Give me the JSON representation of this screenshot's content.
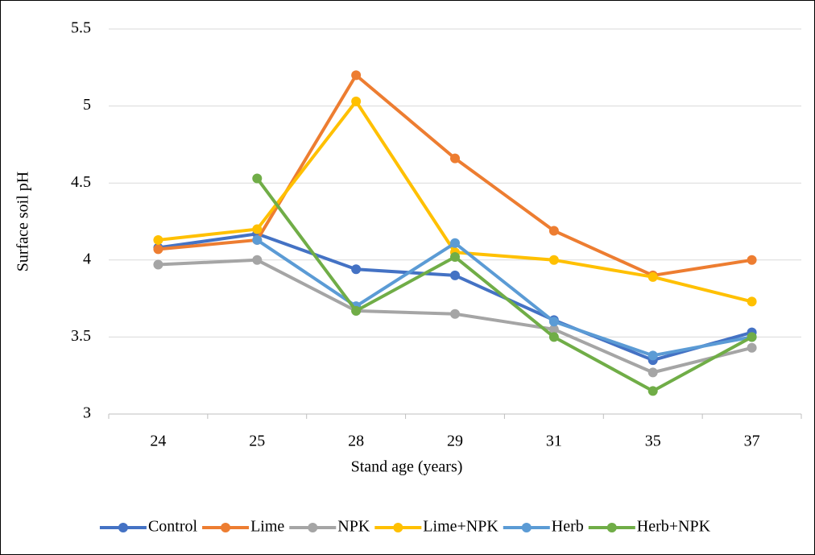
{
  "chart_data": {
    "type": "line",
    "x_label": "Stand age (years)",
    "y_label": "Surface soil pH",
    "categories": [
      "24",
      "25",
      "28",
      "29",
      "31",
      "35",
      "37"
    ],
    "series": [
      {
        "name": "Control",
        "color": "#4472c4",
        "values": [
          4.08,
          4.17,
          3.94,
          3.9,
          3.61,
          3.35,
          3.53
        ]
      },
      {
        "name": "Lime",
        "color": "#ed7d31",
        "values": [
          4.07,
          4.13,
          5.2,
          4.66,
          4.19,
          3.9,
          4.0
        ]
      },
      {
        "name": "NPK",
        "color": "#a5a5a5",
        "values": [
          3.97,
          4.0,
          3.67,
          3.65,
          3.55,
          3.27,
          3.43
        ]
      },
      {
        "name": "Lime+NPK",
        "color": "#ffc000",
        "values": [
          4.13,
          4.2,
          5.03,
          4.05,
          4.0,
          3.89,
          3.73
        ]
      },
      {
        "name": "Herb",
        "color": "#5b9bd5",
        "values": [
          null,
          4.13,
          3.7,
          4.11,
          3.6,
          3.38,
          3.5
        ]
      },
      {
        "name": "Herb+NPK",
        "color": "#70ad47",
        "values": [
          null,
          4.53,
          3.67,
          4.02,
          3.5,
          3.15,
          3.5
        ]
      }
    ],
    "ylim": [
      3,
      5.5
    ],
    "yticks": [
      3,
      3.5,
      4,
      4.5,
      5,
      5.5
    ],
    "grid": true,
    "legend": "bottom"
  }
}
